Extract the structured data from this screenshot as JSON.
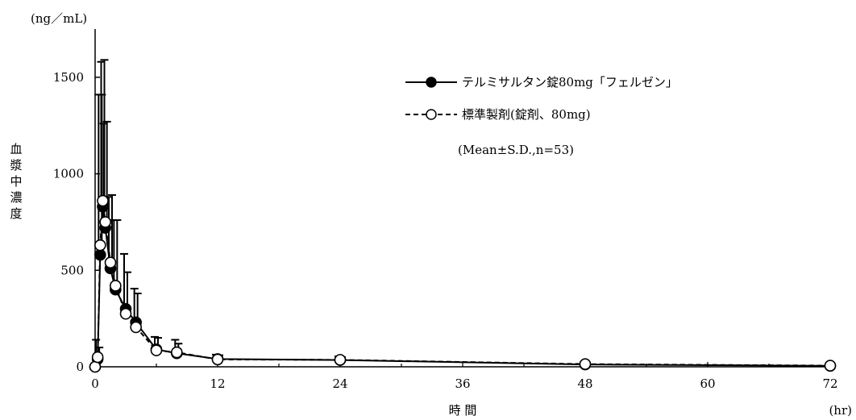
{
  "chart_data": {
    "type": "line",
    "y_unit_label": "(ng／mL)",
    "x_unit_label": "(hr)",
    "ylabel": "血漿中濃度",
    "xlabel": "時 間",
    "xlim": [
      0,
      72
    ],
    "ylim": [
      0,
      1500
    ],
    "y_plot_max": 1750,
    "x_ticks": [
      0,
      12,
      24,
      36,
      48,
      60,
      72
    ],
    "y_ticks": [
      0,
      500,
      1000,
      1500
    ],
    "legend_position": "top-right",
    "legend_note": "(Mean±S.D.,n=53)",
    "series": [
      {
        "name": "テルミサルタン錠80mg「フェルゼン」",
        "marker": "filled-circle",
        "line": "solid",
        "points": [
          {
            "x": 0,
            "y": 0,
            "sd": 0
          },
          {
            "x": 0.25,
            "y": 40,
            "sd": 60
          },
          {
            "x": 0.5,
            "y": 580,
            "sd": 830
          },
          {
            "x": 0.75,
            "y": 830,
            "sd": 760
          },
          {
            "x": 1,
            "y": 720,
            "sd": 550
          },
          {
            "x": 1.5,
            "y": 510,
            "sd": 380
          },
          {
            "x": 2,
            "y": 400,
            "sd": 360
          },
          {
            "x": 3,
            "y": 300,
            "sd": 190
          },
          {
            "x": 4,
            "y": 230,
            "sd": 150
          },
          {
            "x": 6,
            "y": 90,
            "sd": 60
          },
          {
            "x": 8,
            "y": 70,
            "sd": 50
          },
          {
            "x": 12,
            "y": 40,
            "sd": 20
          },
          {
            "x": 24,
            "y": 35,
            "sd": 15
          },
          {
            "x": 48,
            "y": 12,
            "sd": 6
          },
          {
            "x": 72,
            "y": 5,
            "sd": 3
          }
        ]
      },
      {
        "name": "標準製剤(錠剤、80mg)",
        "marker": "open-circle",
        "line": "dashed",
        "points": [
          {
            "x": 0,
            "y": 0,
            "sd": 0
          },
          {
            "x": 0.25,
            "y": 50,
            "sd": 90
          },
          {
            "x": 0.5,
            "y": 630,
            "sd": 780
          },
          {
            "x": 0.75,
            "y": 860,
            "sd": 720
          },
          {
            "x": 1,
            "y": 750,
            "sd": 510
          },
          {
            "x": 1.5,
            "y": 540,
            "sd": 340
          },
          {
            "x": 2,
            "y": 420,
            "sd": 340
          },
          {
            "x": 3,
            "y": 275,
            "sd": 310
          },
          {
            "x": 4,
            "y": 205,
            "sd": 200
          },
          {
            "x": 6,
            "y": 85,
            "sd": 70
          },
          {
            "x": 8,
            "y": 75,
            "sd": 65
          },
          {
            "x": 12,
            "y": 38,
            "sd": 25
          },
          {
            "x": 24,
            "y": 36,
            "sd": 18
          },
          {
            "x": 48,
            "y": 14,
            "sd": 8
          },
          {
            "x": 72,
            "y": 6,
            "sd": 4
          }
        ]
      }
    ]
  }
}
